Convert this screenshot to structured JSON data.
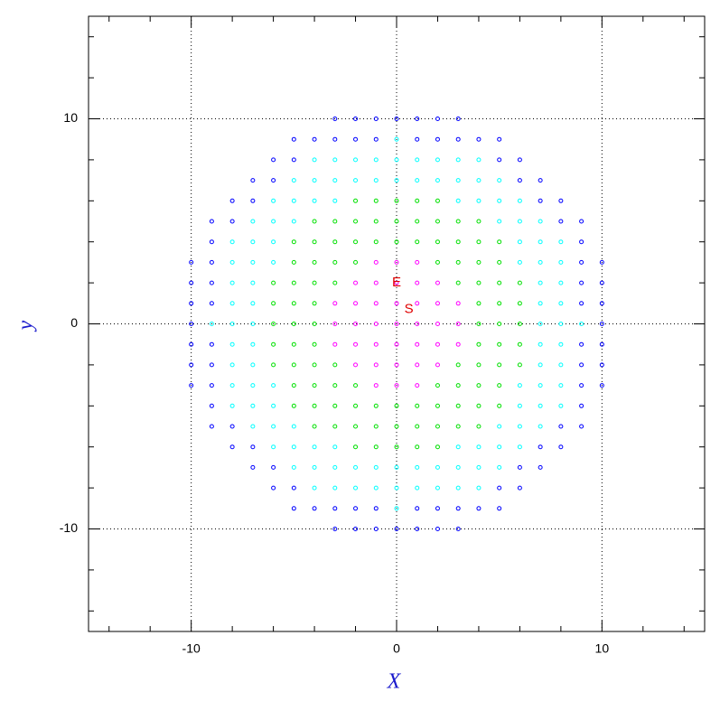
{
  "chart_data": {
    "type": "scatter",
    "x_label": "X",
    "y_label": "y",
    "xlim": [
      -15,
      15
    ],
    "ylim": [
      -15,
      15
    ],
    "xticks": [
      -10,
      0,
      10
    ],
    "yticks": [
      -10,
      0,
      10
    ],
    "xminor": [
      -14,
      -12,
      -8,
      -6,
      -4,
      -2,
      2,
      4,
      6,
      8,
      12,
      14
    ],
    "yminor": [
      -14,
      -12,
      -8,
      -6,
      -4,
      -2,
      2,
      4,
      6,
      8,
      12,
      14
    ],
    "grid": true,
    "annotations": [
      {
        "text": "E",
        "x": 0,
        "y": 2,
        "color": "#e00000"
      },
      {
        "text": "S",
        "x": 0.6,
        "y": 0.7,
        "color": "#e00000"
      }
    ],
    "series": [
      {
        "color": "#0000ff",
        "x": [
          -3,
          -2,
          -1,
          0,
          1,
          2,
          3,
          -5,
          -4,
          -3,
          -2,
          -1,
          1,
          2,
          3,
          4,
          5,
          -6,
          -5,
          5,
          6,
          -7,
          -6,
          6,
          7,
          -8,
          -7,
          7,
          8,
          -9,
          -8,
          8,
          9,
          -9,
          9,
          -10,
          -9,
          9,
          10,
          -10,
          -9,
          9,
          10,
          -10,
          -9,
          9,
          10,
          -10,
          10,
          -10,
          -9,
          9,
          10,
          -10,
          -9,
          9,
          10,
          -10,
          -9,
          9,
          10,
          -9,
          9,
          -9,
          -8,
          8,
          9,
          -8,
          -7,
          7,
          8,
          -7,
          -6,
          6,
          7,
          -6,
          -5,
          5,
          6,
          -5,
          -4,
          -3,
          -2,
          -1,
          1,
          2,
          3,
          4,
          5,
          -3,
          -2,
          -1,
          0,
          1,
          2,
          3
        ],
        "values": [
          10,
          10,
          10,
          10,
          10,
          10,
          10,
          9,
          9,
          9,
          9,
          9,
          9,
          9,
          9,
          9,
          9,
          8,
          8,
          8,
          8,
          7,
          7,
          7,
          7,
          6,
          6,
          6,
          6,
          5,
          5,
          5,
          5,
          4,
          4,
          3,
          3,
          3,
          3,
          2,
          2,
          2,
          2,
          1,
          1,
          1,
          1,
          0,
          0,
          -1,
          -1,
          -1,
          -1,
          -2,
          -2,
          -2,
          -2,
          -3,
          -3,
          -3,
          -3,
          -4,
          -4,
          -5,
          -5,
          -5,
          -5,
          -6,
          -6,
          -6,
          -6,
          -7,
          -7,
          -7,
          -7,
          -8,
          -8,
          -8,
          -8,
          -9,
          -9,
          -9,
          -9,
          -9,
          -9,
          -9,
          -9,
          -9,
          -9,
          -10,
          -10,
          -10,
          -10,
          -10,
          -10,
          -10
        ]
      },
      {
        "color": "#00ffff",
        "x": [
          0,
          -4,
          -3,
          -2,
          -1,
          0,
          1,
          2,
          3,
          4,
          -5,
          -4,
          -3,
          -2,
          -1,
          0,
          1,
          2,
          3,
          4,
          5,
          -6,
          -5,
          -4,
          -3,
          3,
          4,
          5,
          6,
          -7,
          -6,
          -5,
          5,
          6,
          7,
          -8,
          -7,
          -6,
          6,
          7,
          8,
          -8,
          -7,
          -6,
          6,
          7,
          8,
          -8,
          -7,
          7,
          8,
          -8,
          -7,
          7,
          8,
          -9,
          -8,
          -7,
          7,
          8,
          9,
          -8,
          -7,
          7,
          8,
          -8,
          -7,
          7,
          8,
          -8,
          -7,
          -6,
          6,
          7,
          8,
          -8,
          -7,
          -6,
          6,
          7,
          8,
          -7,
          -6,
          -5,
          5,
          6,
          7,
          -6,
          -5,
          -4,
          -3,
          3,
          4,
          5,
          6,
          -5,
          -4,
          -3,
          -2,
          -1,
          0,
          1,
          2,
          3,
          4,
          5,
          -4,
          -3,
          -2,
          -1,
          0,
          1,
          2,
          3,
          4,
          0
        ],
        "values": [
          9,
          8,
          8,
          8,
          8,
          8,
          8,
          8,
          8,
          8,
          7,
          7,
          7,
          7,
          7,
          7,
          7,
          7,
          7,
          7,
          7,
          6,
          6,
          6,
          6,
          6,
          6,
          6,
          6,
          5,
          5,
          5,
          5,
          5,
          5,
          4,
          4,
          4,
          4,
          4,
          4,
          3,
          3,
          3,
          3,
          3,
          3,
          2,
          2,
          2,
          2,
          1,
          1,
          1,
          1,
          0,
          0,
          0,
          0,
          0,
          0,
          -1,
          -1,
          -1,
          -1,
          -2,
          -2,
          -2,
          -2,
          -3,
          -3,
          -3,
          -3,
          -3,
          -3,
          -4,
          -4,
          -4,
          -4,
          -4,
          -4,
          -5,
          -5,
          -5,
          -5,
          -5,
          -5,
          -6,
          -6,
          -6,
          -6,
          -6,
          -6,
          -6,
          -6,
          -7,
          -7,
          -7,
          -7,
          -7,
          -7,
          -7,
          -7,
          -7,
          -7,
          -7,
          -8,
          -8,
          -8,
          -8,
          -8,
          -8,
          -8,
          -8,
          -8,
          -9
        ]
      },
      {
        "color": "#00e000",
        "x": [
          -2,
          -1,
          0,
          1,
          2,
          -4,
          -3,
          -2,
          -1,
          0,
          1,
          2,
          3,
          4,
          -5,
          -4,
          -3,
          -2,
          -1,
          0,
          1,
          2,
          3,
          4,
          5,
          -5,
          -4,
          -3,
          -2,
          2,
          3,
          4,
          5,
          -6,
          -5,
          -4,
          -3,
          3,
          4,
          5,
          6,
          -6,
          -5,
          -4,
          4,
          5,
          6,
          -6,
          -5,
          -4,
          4,
          5,
          6,
          -6,
          -5,
          -4,
          4,
          5,
          6,
          -6,
          -5,
          -4,
          -3,
          3,
          4,
          5,
          6,
          -5,
          -4,
          -3,
          -2,
          2,
          3,
          4,
          5,
          -5,
          -4,
          -3,
          -2,
          -1,
          0,
          1,
          2,
          3,
          4,
          5,
          -4,
          -3,
          -2,
          -1,
          0,
          1,
          2,
          3,
          4,
          -2,
          -1,
          0,
          1,
          2
        ],
        "values": [
          6,
          6,
          6,
          6,
          6,
          5,
          5,
          5,
          5,
          5,
          5,
          5,
          5,
          5,
          4,
          4,
          4,
          4,
          4,
          4,
          4,
          4,
          4,
          4,
          4,
          3,
          3,
          3,
          3,
          3,
          3,
          3,
          3,
          2,
          2,
          2,
          2,
          2,
          2,
          2,
          2,
          1,
          1,
          1,
          1,
          1,
          1,
          0,
          0,
          0,
          0,
          0,
          0,
          -1,
          -1,
          -1,
          -1,
          -1,
          -1,
          -2,
          -2,
          -2,
          -2,
          -2,
          -2,
          -2,
          -2,
          -3,
          -3,
          -3,
          -3,
          -3,
          -3,
          -3,
          -3,
          -4,
          -4,
          -4,
          -4,
          -4,
          -4,
          -4,
          -4,
          -4,
          -4,
          -4,
          -5,
          -5,
          -5,
          -5,
          -5,
          -5,
          -5,
          -5,
          -5,
          -6,
          -6,
          -6,
          -6,
          -6
        ]
      },
      {
        "color": "#ff00ff",
        "x": [
          -1,
          0,
          1,
          -2,
          -1,
          0,
          1,
          2,
          -3,
          -2,
          -1,
          0,
          1,
          2,
          3,
          -3,
          -2,
          -1,
          0,
          1,
          2,
          3,
          -3,
          -2,
          -1,
          0,
          1,
          2,
          3,
          -2,
          -1,
          0,
          1,
          2,
          -1,
          0,
          1
        ],
        "values": [
          3,
          3,
          3,
          2,
          2,
          2,
          2,
          2,
          1,
          1,
          1,
          1,
          1,
          1,
          1,
          0,
          0,
          0,
          0,
          0,
          0,
          0,
          -1,
          -1,
          -1,
          -1,
          -1,
          -1,
          -1,
          -2,
          -2,
          -2,
          -2,
          -2,
          -3,
          -3,
          -3
        ]
      }
    ]
  }
}
